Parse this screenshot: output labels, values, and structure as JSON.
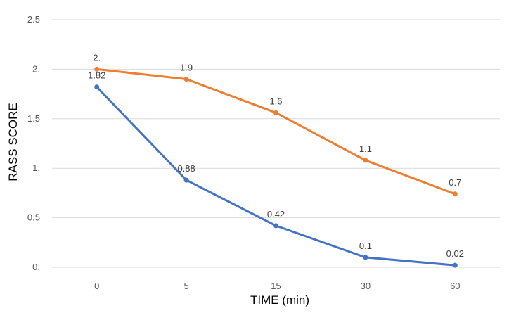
{
  "chart_data": {
    "type": "line",
    "title": "",
    "xlabel": "TIME (min)",
    "ylabel": "RASS SCORE",
    "categories": [
      "0",
      "5",
      "15",
      "30",
      "60"
    ],
    "yticks": [
      "0.",
      "0.5",
      "1.",
      "1.5",
      "2.",
      "2.5"
    ],
    "ylim": [
      0,
      2.5
    ],
    "grid": true,
    "series": [
      {
        "color": "#ED7D31",
        "values": [
          2.0,
          1.9,
          1.56,
          1.08,
          0.74
        ],
        "labels": [
          "2.",
          "1.9",
          "1.6",
          "1.1",
          "0.7"
        ]
      },
      {
        "color": "#4472C4",
        "values": [
          1.82,
          0.88,
          0.42,
          0.1,
          0.02
        ],
        "labels": [
          "1.82",
          "0.88",
          "0.42",
          "0.1",
          "0.02"
        ]
      }
    ]
  }
}
